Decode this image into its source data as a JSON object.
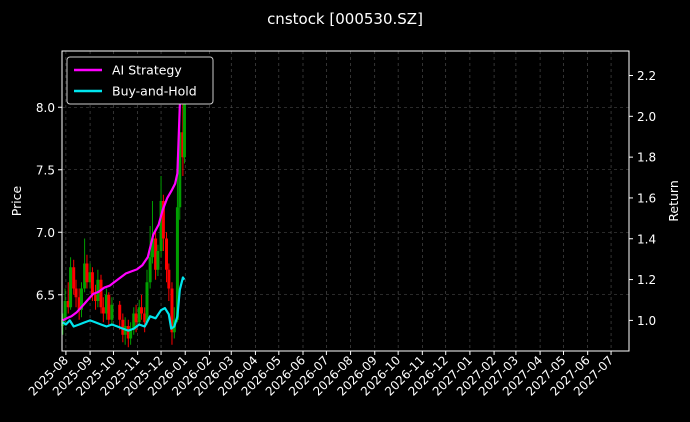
{
  "chart_data": {
    "type": "line",
    "title": "cnstock [000530.SZ]",
    "ylabel": "Price",
    "y2label": "Return",
    "x_ticks": [
      "2025-08",
      "2025-09",
      "2025-10",
      "2025-11",
      "2025-12",
      "2026-01",
      "2026-02",
      "2026-03",
      "2026-04",
      "2026-05",
      "2026-06",
      "2026-07",
      "2026-08",
      "2026-09",
      "2026-10",
      "2026-11",
      "2026-12",
      "2027-01",
      "2027-02",
      "2027-03",
      "2027-04",
      "2027-05",
      "2027-06",
      "2027-07"
    ],
    "xlim": [
      "2025-07-27",
      "2027-07-24"
    ],
    "ylim": [
      6.05,
      8.45
    ],
    "y_ticks": [
      6.5,
      7.0,
      7.5,
      8.0
    ],
    "y2lim": [
      0.85,
      2.32
    ],
    "y2_ticks": [
      1.0,
      1.2,
      1.4,
      1.6,
      1.8,
      2.0,
      2.2
    ],
    "grid": true,
    "legend_position": "top-left",
    "colors": {
      "ai": "#ff00ff",
      "bh": "#00e5ee",
      "up": "#00a000",
      "down": "#ff0000",
      "grid": "#555555"
    },
    "legend": [
      {
        "key": "ai",
        "label": "AI Strategy"
      },
      {
        "key": "bh",
        "label": "Buy-and-Hold"
      }
    ],
    "series": [
      {
        "key": "ai",
        "name": "AI Strategy",
        "axis": "return",
        "points": [
          [
            "2025-07-28",
            1.0
          ],
          [
            "2025-08-02",
            1.01
          ],
          [
            "2025-08-08",
            1.02
          ],
          [
            "2025-08-15",
            1.04
          ],
          [
            "2025-08-22",
            1.07
          ],
          [
            "2025-08-29",
            1.1
          ],
          [
            "2025-09-05",
            1.13
          ],
          [
            "2025-09-12",
            1.14
          ],
          [
            "2025-09-19",
            1.16
          ],
          [
            "2025-09-26",
            1.17
          ],
          [
            "2025-10-03",
            1.19
          ],
          [
            "2025-10-10",
            1.21
          ],
          [
            "2025-10-17",
            1.23
          ],
          [
            "2025-10-24",
            1.24
          ],
          [
            "2025-10-31",
            1.25
          ],
          [
            "2025-11-07",
            1.27
          ],
          [
            "2025-11-14",
            1.31
          ],
          [
            "2025-11-21",
            1.42
          ],
          [
            "2025-11-28",
            1.47
          ],
          [
            "2025-12-03",
            1.54
          ],
          [
            "2025-12-09",
            1.6
          ],
          [
            "2025-12-15",
            1.64
          ],
          [
            "2025-12-19",
            1.67
          ],
          [
            "2025-12-22",
            1.72
          ],
          [
            "2025-12-25",
            2.05
          ],
          [
            "2025-12-29",
            2.25
          ],
          [
            "2025-12-31",
            2.22
          ]
        ]
      },
      {
        "key": "bh",
        "name": "Buy-and-Hold",
        "axis": "return",
        "points": [
          [
            "2025-07-28",
            0.99
          ],
          [
            "2025-08-01",
            0.98
          ],
          [
            "2025-08-06",
            1.0
          ],
          [
            "2025-08-11",
            0.97
          ],
          [
            "2025-08-18",
            0.98
          ],
          [
            "2025-08-25",
            0.99
          ],
          [
            "2025-09-01",
            1.0
          ],
          [
            "2025-09-08",
            0.99
          ],
          [
            "2025-09-15",
            0.98
          ],
          [
            "2025-09-22",
            0.97
          ],
          [
            "2025-09-29",
            0.98
          ],
          [
            "2025-10-06",
            0.97
          ],
          [
            "2025-10-13",
            0.96
          ],
          [
            "2025-10-20",
            0.95
          ],
          [
            "2025-10-27",
            0.96
          ],
          [
            "2025-11-03",
            0.98
          ],
          [
            "2025-11-10",
            0.97
          ],
          [
            "2025-11-17",
            1.02
          ],
          [
            "2025-11-24",
            1.01
          ],
          [
            "2025-12-01",
            1.05
          ],
          [
            "2025-12-06",
            1.06
          ],
          [
            "2025-12-11",
            1.03
          ],
          [
            "2025-12-14",
            0.96
          ],
          [
            "2025-12-18",
            0.97
          ],
          [
            "2025-12-22",
            1.02
          ],
          [
            "2025-12-25",
            1.15
          ],
          [
            "2025-12-29",
            1.21
          ],
          [
            "2025-12-31",
            1.2
          ]
        ]
      }
    ],
    "candles": [
      [
        "2025-07-28",
        6.25,
        6.3,
        6.18,
        6.35
      ],
      [
        "2025-07-31",
        6.3,
        6.45,
        6.28,
        6.55
      ],
      [
        "2025-08-04",
        6.45,
        6.4,
        6.35,
        6.6
      ],
      [
        "2025-08-07",
        6.4,
        6.72,
        6.38,
        6.8
      ],
      [
        "2025-08-11",
        6.72,
        6.55,
        6.5,
        6.78
      ],
      [
        "2025-08-14",
        6.55,
        6.48,
        6.4,
        6.62
      ],
      [
        "2025-08-18",
        6.48,
        6.38,
        6.3,
        6.55
      ],
      [
        "2025-08-21",
        6.38,
        6.55,
        6.32,
        6.6
      ],
      [
        "2025-08-25",
        6.55,
        6.75,
        6.52,
        6.95
      ],
      [
        "2025-08-28",
        6.75,
        6.6,
        6.55,
        6.82
      ],
      [
        "2025-09-01",
        6.6,
        6.68,
        6.55,
        6.75
      ],
      [
        "2025-09-04",
        6.68,
        6.5,
        6.45,
        6.72
      ],
      [
        "2025-09-08",
        6.5,
        6.45,
        6.38,
        6.58
      ],
      [
        "2025-09-11",
        6.45,
        6.62,
        6.4,
        6.7
      ],
      [
        "2025-09-15",
        6.62,
        6.4,
        6.35,
        6.66
      ],
      [
        "2025-09-18",
        6.4,
        6.35,
        6.28,
        6.48
      ],
      [
        "2025-09-22",
        6.35,
        6.5,
        6.3,
        6.55
      ],
      [
        "2025-09-25",
        6.5,
        6.3,
        6.25,
        6.52
      ],
      [
        "2025-09-29",
        6.3,
        6.42,
        6.25,
        6.48
      ],
      [
        "2025-10-09",
        6.42,
        6.3,
        6.22,
        6.45
      ],
      [
        "2025-10-13",
        6.3,
        6.18,
        6.12,
        6.35
      ],
      [
        "2025-10-16",
        6.18,
        6.25,
        6.1,
        6.32
      ],
      [
        "2025-10-20",
        6.25,
        6.15,
        6.08,
        6.3
      ],
      [
        "2025-10-23",
        6.15,
        6.22,
        6.1,
        6.28
      ],
      [
        "2025-10-27",
        6.22,
        6.35,
        6.18,
        6.4
      ],
      [
        "2025-10-30",
        6.35,
        6.28,
        6.2,
        6.42
      ],
      [
        "2025-11-03",
        6.28,
        6.4,
        6.25,
        6.46
      ],
      [
        "2025-11-06",
        6.4,
        6.35,
        6.3,
        6.5
      ],
      [
        "2025-11-10",
        6.35,
        6.28,
        6.2,
        6.4
      ],
      [
        "2025-11-13",
        6.28,
        6.6,
        6.26,
        6.7
      ],
      [
        "2025-11-17",
        6.6,
        6.8,
        6.55,
        7.05
      ],
      [
        "2025-11-20",
        6.8,
        6.95,
        6.75,
        7.25
      ],
      [
        "2025-11-24",
        6.95,
        6.7,
        6.62,
        7.0
      ],
      [
        "2025-11-27",
        6.7,
        6.85,
        6.65,
        6.9
      ],
      [
        "2025-12-01",
        6.85,
        7.25,
        6.8,
        7.45
      ],
      [
        "2025-12-04",
        7.25,
        6.95,
        6.85,
        7.3
      ],
      [
        "2025-12-08",
        6.95,
        6.7,
        6.6,
        7.0
      ],
      [
        "2025-12-11",
        6.7,
        6.55,
        6.45,
        6.75
      ],
      [
        "2025-12-15",
        6.55,
        6.2,
        6.1,
        6.6
      ],
      [
        "2025-12-18",
        6.2,
        6.3,
        6.15,
        6.4
      ],
      [
        "2025-12-22",
        6.3,
        7.2,
        6.28,
        7.6
      ],
      [
        "2025-12-25",
        7.2,
        7.8,
        7.1,
        8.1
      ],
      [
        "2025-12-29",
        7.8,
        7.6,
        7.45,
        8.25
      ],
      [
        "2025-12-31",
        7.6,
        8.05,
        7.55,
        8.2
      ]
    ]
  }
}
